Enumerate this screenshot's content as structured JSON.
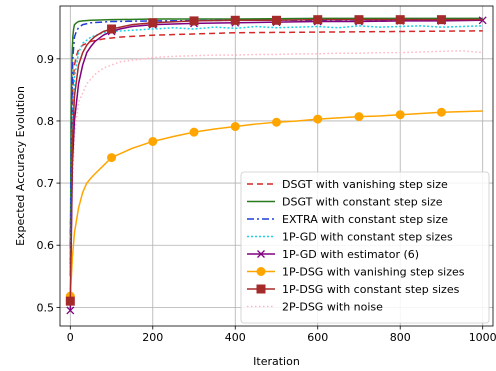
{
  "chart_data": {
    "type": "line",
    "xlabel": "Iteration",
    "ylabel": "Expected Accuracy Evolution",
    "xlim": [
      -25,
      1025
    ],
    "ylim": [
      0.47,
      0.985
    ],
    "xticks": [
      0,
      200,
      400,
      600,
      800,
      1000
    ],
    "yticks": [
      0.5,
      0.6,
      0.7,
      0.8,
      0.9
    ],
    "xtick_labels": [
      "0",
      "200",
      "400",
      "600",
      "800",
      "1000"
    ],
    "ytick_labels": [
      "0.5",
      "0.6",
      "0.7",
      "0.8",
      "0.9"
    ],
    "grid": true,
    "legend_position": "lower-right",
    "series": [
      {
        "name": "DSGT with vanishing step size",
        "color": "#d62728",
        "dash": "6,4",
        "marker": "none",
        "x": [
          0,
          3,
          6,
          10,
          15,
          20,
          30,
          50,
          80,
          120,
          200,
          300,
          400,
          600,
          800,
          1000
        ],
        "y": [
          0.6,
          0.76,
          0.85,
          0.89,
          0.905,
          0.915,
          0.922,
          0.928,
          0.932,
          0.935,
          0.938,
          0.94,
          0.942,
          0.943,
          0.944,
          0.945
        ]
      },
      {
        "name": "DSGT with constant step size",
        "color": "#2a7a1f",
        "dash": "",
        "marker": "none",
        "x": [
          0,
          2,
          4,
          6,
          8,
          10,
          15,
          20,
          30,
          50,
          100,
          200,
          400,
          600,
          800,
          1000
        ],
        "y": [
          0.55,
          0.8,
          0.9,
          0.935,
          0.948,
          0.955,
          0.958,
          0.96,
          0.961,
          0.962,
          0.963,
          0.964,
          0.964,
          0.965,
          0.965,
          0.965
        ]
      },
      {
        "name": "EXTRA with constant step size",
        "color": "#1f3fd6",
        "dash": "7,3,2,3",
        "marker": "none",
        "x": [
          0,
          3,
          6,
          10,
          15,
          20,
          30,
          50,
          100,
          200,
          400,
          600,
          800,
          1000
        ],
        "y": [
          0.57,
          0.8,
          0.9,
          0.935,
          0.945,
          0.95,
          0.955,
          0.958,
          0.96,
          0.961,
          0.962,
          0.962,
          0.963,
          0.963
        ]
      },
      {
        "name": "1P-GD with constant step sizes",
        "color": "#19d3e8",
        "dash": "2,2",
        "marker": "none",
        "x": [
          0,
          5,
          10,
          20,
          30,
          50,
          80,
          100,
          150,
          200,
          250,
          300,
          350,
          400,
          450,
          500,
          550,
          600,
          650,
          700,
          750,
          800,
          850,
          900,
          950,
          1000
        ],
        "y": [
          0.56,
          0.78,
          0.87,
          0.91,
          0.925,
          0.935,
          0.942,
          0.944,
          0.946,
          0.948,
          0.95,
          0.948,
          0.951,
          0.949,
          0.952,
          0.95,
          0.951,
          0.952,
          0.95,
          0.953,
          0.951,
          0.952,
          0.953,
          0.951,
          0.952,
          0.953
        ]
      },
      {
        "name": "1P-GD with estimator (6)",
        "color": "#800080",
        "dash": "",
        "marker": "x",
        "x": [
          0,
          5,
          10,
          20,
          30,
          40,
          50,
          60,
          80,
          100,
          120,
          150,
          200,
          300,
          400,
          500,
          600,
          700,
          800,
          900,
          1000
        ],
        "y": [
          0.495,
          0.73,
          0.8,
          0.86,
          0.89,
          0.91,
          0.92,
          0.928,
          0.938,
          0.944,
          0.948,
          0.952,
          0.955,
          0.957,
          0.958,
          0.959,
          0.96,
          0.96,
          0.961,
          0.961,
          0.962
        ],
        "marker_x": [
          0,
          100,
          200,
          300,
          400,
          500,
          600,
          700,
          800,
          900,
          1000
        ]
      },
      {
        "name": "1P-DSG with vanishing step sizes",
        "color": "#ffa500",
        "dash": "",
        "marker": "circle",
        "x": [
          0,
          5,
          10,
          20,
          30,
          40,
          50,
          60,
          80,
          100,
          150,
          200,
          250,
          300,
          350,
          400,
          450,
          500,
          550,
          600,
          650,
          700,
          750,
          800,
          850,
          900,
          950,
          1000
        ],
        "y": [
          0.518,
          0.58,
          0.62,
          0.66,
          0.685,
          0.7,
          0.708,
          0.715,
          0.728,
          0.741,
          0.756,
          0.767,
          0.775,
          0.782,
          0.787,
          0.791,
          0.795,
          0.798,
          0.8,
          0.803,
          0.805,
          0.807,
          0.808,
          0.81,
          0.812,
          0.814,
          0.815,
          0.816
        ],
        "marker_x": [
          0,
          100,
          200,
          300,
          400,
          500,
          600,
          700,
          800,
          900
        ]
      },
      {
        "name": "1P-DSG with constant step sizes",
        "color": "#a52a2a",
        "dash": "",
        "marker": "square",
        "x": [
          0,
          5,
          10,
          20,
          30,
          40,
          50,
          60,
          80,
          100,
          150,
          200,
          300,
          400,
          500,
          600,
          700,
          800,
          900,
          1000
        ],
        "y": [
          0.51,
          0.76,
          0.84,
          0.89,
          0.91,
          0.922,
          0.93,
          0.936,
          0.944,
          0.948,
          0.955,
          0.958,
          0.961,
          0.962,
          0.962,
          0.963,
          0.963,
          0.963,
          0.963,
          0.963
        ],
        "marker_x": [
          0,
          100,
          200,
          300,
          400,
          500,
          600,
          700,
          800,
          900
        ]
      },
      {
        "name": "2P-DSG with noise",
        "color": "#ffb6c1",
        "dash": "1.5,2.5",
        "marker": "none",
        "x": [
          0,
          10,
          20,
          40,
          60,
          80,
          100,
          120,
          150,
          180,
          200,
          250,
          300,
          350,
          400,
          450,
          500,
          550,
          600,
          650,
          700,
          750,
          800,
          850,
          900,
          950,
          1000
        ],
        "y": [
          0.6,
          0.78,
          0.83,
          0.86,
          0.875,
          0.885,
          0.89,
          0.895,
          0.898,
          0.9,
          0.902,
          0.904,
          0.905,
          0.906,
          0.906,
          0.907,
          0.907,
          0.908,
          0.908,
          0.909,
          0.909,
          0.91,
          0.91,
          0.911,
          0.912,
          0.913,
          0.91
        ]
      }
    ]
  }
}
